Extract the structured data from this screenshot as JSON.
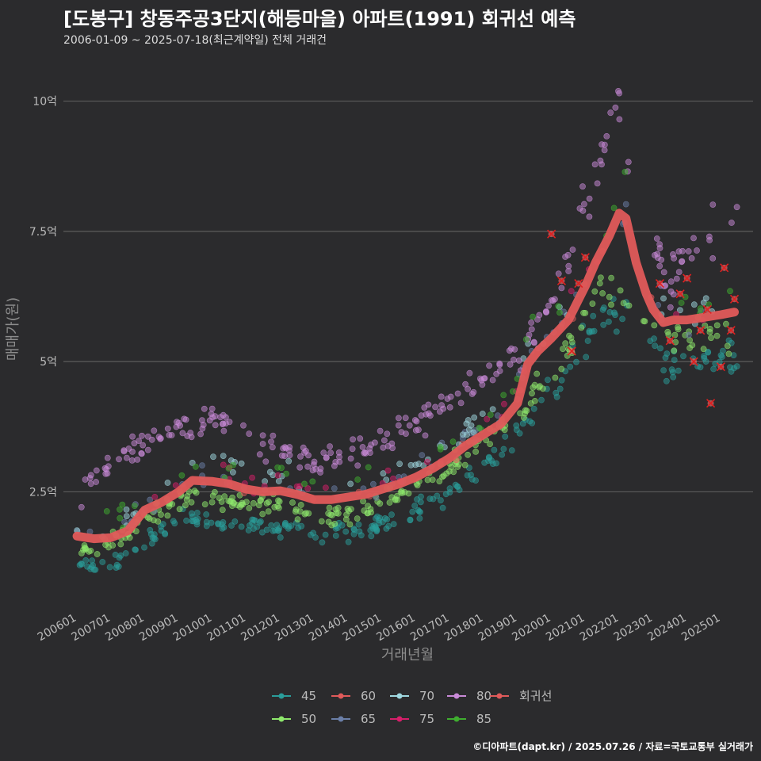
{
  "title": "[도봉구] 창동주공3단지(해등마을) 아파트(1991) 회귀선 예측",
  "subtitle": "2006-01-09 ~ 2025-07-18(최근계약일) 전체 거래건",
  "caption": "©디아파트(dapt.kr) / 2025.07.26 / 자료=국토교통부 실거래가",
  "chart_data": {
    "type": "scatter",
    "xlabel": "거래년월",
    "ylabel": "매매가(원)",
    "x_range": [
      "2006-01",
      "2025-07"
    ],
    "y_unit": "억",
    "ylim": [
      0.3,
      10.8
    ],
    "yticks": [
      {
        "value": 2.5,
        "label": "2.5억"
      },
      {
        "value": 5,
        "label": "5억"
      },
      {
        "value": 7.5,
        "label": "7.5억"
      },
      {
        "value": 10,
        "label": "10억"
      }
    ],
    "xticks": [
      "200601",
      "200701",
      "200801",
      "200901",
      "201001",
      "201101",
      "201201",
      "201301",
      "201401",
      "201501",
      "201601",
      "201701",
      "201801",
      "201901",
      "202001",
      "202101",
      "202201",
      "202301",
      "202401",
      "202501"
    ],
    "grid": "horizontal",
    "legend_position": "bottom",
    "series": [
      {
        "name": "45",
        "color": "#2a9d9a",
        "offset": -0.85,
        "spread": 0.3,
        "anchors": [
          [
            2006.0,
            1.1
          ],
          [
            2007.0,
            1.05
          ],
          [
            2008.0,
            1.6
          ],
          [
            2009.0,
            2.0
          ],
          [
            2010.0,
            1.9
          ],
          [
            2012.0,
            1.8
          ],
          [
            2013.0,
            1.7
          ],
          [
            2014.0,
            1.75
          ],
          [
            2015.0,
            1.85
          ],
          [
            2016.0,
            2.1
          ],
          [
            2017.0,
            2.5
          ],
          [
            2018.0,
            3.0
          ],
          [
            2019.0,
            3.6
          ],
          [
            2020.0,
            4.3
          ],
          [
            2021.0,
            5.4
          ],
          [
            2021.5,
            6.0
          ],
          [
            2022.5,
            5.8
          ],
          [
            2023.5,
            4.9
          ],
          [
            2024.0,
            5.0
          ],
          [
            2025.5,
            5.1
          ]
        ]
      },
      {
        "name": "50",
        "color": "#8ee86c",
        "offset": -0.45,
        "spread": 0.3,
        "anchors": [
          [
            2006.0,
            1.35
          ],
          [
            2007.0,
            1.5
          ],
          [
            2008.0,
            1.95
          ],
          [
            2009.0,
            2.35
          ],
          [
            2010.0,
            2.4
          ],
          [
            2012.0,
            2.2
          ],
          [
            2013.0,
            2.0
          ],
          [
            2014.0,
            2.05
          ],
          [
            2015.0,
            2.3
          ],
          [
            2016.0,
            2.55
          ],
          [
            2017.0,
            3.0
          ],
          [
            2018.0,
            3.45
          ],
          [
            2019.0,
            4.0
          ],
          [
            2020.0,
            4.7
          ],
          [
            2021.0,
            5.9
          ],
          [
            2021.5,
            6.5
          ],
          [
            2022.5,
            6.0
          ],
          [
            2023.5,
            5.5
          ],
          [
            2025.5,
            5.6
          ]
        ]
      },
      {
        "name": "60",
        "color": "#e05a5a",
        "offset": 0.0,
        "spread": 0.2,
        "points": 14
      },
      {
        "name": "65",
        "color": "#6b7fa8",
        "offset": 0.1,
        "spread": 0.35,
        "points": 60
      },
      {
        "name": "70",
        "color": "#9fd8e0",
        "offset": 0.3,
        "spread": 0.35,
        "points": 60
      },
      {
        "name": "75",
        "color": "#d61f6a",
        "offset": 0.2,
        "spread": 0.3,
        "points": 30
      },
      {
        "name": "80",
        "color": "#c98ad8",
        "offset": 0.75,
        "spread": 0.4,
        "anchors": [
          [
            2006.0,
            2.4
          ],
          [
            2007.0,
            3.0
          ],
          [
            2008.0,
            3.5
          ],
          [
            2009.0,
            3.6
          ],
          [
            2010.0,
            3.9
          ],
          [
            2011.0,
            3.6
          ],
          [
            2012.0,
            3.3
          ],
          [
            2013.0,
            3.1
          ],
          [
            2014.0,
            3.2
          ],
          [
            2015.0,
            3.45
          ],
          [
            2016.0,
            3.8
          ],
          [
            2017.0,
            4.3
          ],
          [
            2018.0,
            4.6
          ],
          [
            2019.0,
            5.2
          ],
          [
            2020.0,
            6.1
          ],
          [
            2021.0,
            8.0
          ],
          [
            2021.5,
            8.9
          ],
          [
            2022.0,
            10.2
          ],
          [
            2022.5,
            8.0
          ],
          [
            2023.5,
            6.5
          ],
          [
            2024.0,
            7.2
          ],
          [
            2025.3,
            7.8
          ]
        ]
      },
      {
        "name": "85",
        "color": "#3fae2f",
        "offset": 0.35,
        "spread": 0.35,
        "points": 40
      },
      {
        "name": "회귀선",
        "color": "#e05a5a",
        "type": "line",
        "points": [
          [
            2006.0,
            1.65
          ],
          [
            2006.5,
            1.6
          ],
          [
            2007.0,
            1.62
          ],
          [
            2007.5,
            1.75
          ],
          [
            2008.0,
            2.15
          ],
          [
            2008.5,
            2.3
          ],
          [
            2009.0,
            2.5
          ],
          [
            2009.4,
            2.72
          ],
          [
            2010.0,
            2.7
          ],
          [
            2010.5,
            2.65
          ],
          [
            2011.0,
            2.55
          ],
          [
            2011.5,
            2.5
          ],
          [
            2012.0,
            2.52
          ],
          [
            2012.5,
            2.45
          ],
          [
            2013.0,
            2.35
          ],
          [
            2013.5,
            2.35
          ],
          [
            2014.0,
            2.4
          ],
          [
            2014.5,
            2.45
          ],
          [
            2015.0,
            2.55
          ],
          [
            2015.5,
            2.65
          ],
          [
            2016.0,
            2.78
          ],
          [
            2016.5,
            2.95
          ],
          [
            2017.0,
            3.15
          ],
          [
            2017.5,
            3.4
          ],
          [
            2018.0,
            3.6
          ],
          [
            2018.5,
            3.8
          ],
          [
            2019.0,
            4.2
          ],
          [
            2019.3,
            4.95
          ],
          [
            2019.6,
            5.2
          ],
          [
            2020.0,
            5.45
          ],
          [
            2020.5,
            5.8
          ],
          [
            2021.0,
            6.45
          ],
          [
            2021.3,
            6.9
          ],
          [
            2021.7,
            7.4
          ],
          [
            2022.0,
            7.85
          ],
          [
            2022.2,
            7.75
          ],
          [
            2022.5,
            6.9
          ],
          [
            2022.8,
            6.3
          ],
          [
            2023.0,
            6.0
          ],
          [
            2023.3,
            5.75
          ],
          [
            2023.6,
            5.8
          ],
          [
            2024.0,
            5.8
          ],
          [
            2024.5,
            5.85
          ],
          [
            2025.0,
            5.9
          ],
          [
            2025.4,
            5.95
          ]
        ]
      }
    ],
    "highlighted_recent": {
      "marker": "x",
      "color": "#e02020",
      "points": [
        [
          2020.0,
          7.45
        ],
        [
          2020.3,
          6.55
        ],
        [
          2020.6,
          5.2
        ],
        [
          2020.8,
          6.5
        ],
        [
          2021.0,
          7.0
        ],
        [
          2023.2,
          6.5
        ],
        [
          2023.5,
          5.4
        ],
        [
          2023.8,
          6.3
        ],
        [
          2024.0,
          6.6
        ],
        [
          2024.2,
          5.0
        ],
        [
          2024.4,
          5.6
        ],
        [
          2024.6,
          6.0
        ],
        [
          2024.7,
          4.2
        ],
        [
          2025.0,
          4.9
        ],
        [
          2025.1,
          6.8
        ],
        [
          2025.3,
          5.6
        ],
        [
          2025.4,
          6.2
        ]
      ]
    }
  }
}
